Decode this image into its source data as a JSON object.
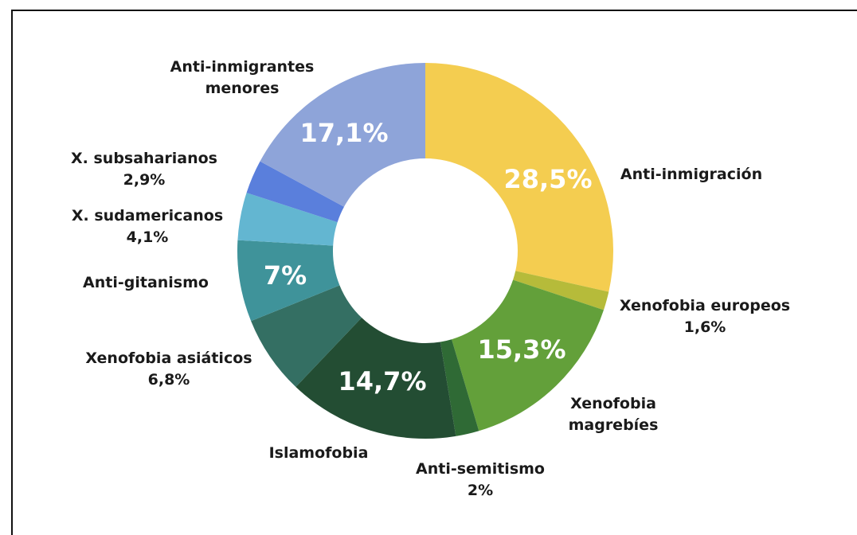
{
  "chart_data": {
    "type": "pie",
    "donut": true,
    "colors_note": "colors per slice",
    "slices": [
      {
        "name": "Anti-inmigración",
        "value": 28.5,
        "color": "#f4cd50",
        "ext_lines": [
          "Anti-inmigración"
        ],
        "inner_label": "28,5%"
      },
      {
        "name": "Xenofobia europeos",
        "value": 1.6,
        "color": "#b6bb3a",
        "ext_lines": [
          "Xenofobia europeos",
          "1,6%"
        ],
        "inner_label": ""
      },
      {
        "name": "Xenofobia magrebíes",
        "value": 15.3,
        "color": "#63a03a",
        "ext_lines": [
          "Xenofobia",
          "magrebíes"
        ],
        "inner_label": "15,3%"
      },
      {
        "name": "Anti-semitismo",
        "value": 2,
        "color": "#2f6a35",
        "ext_lines": [
          "Anti-semitismo",
          "2%"
        ],
        "inner_label": ""
      },
      {
        "name": "Islamofobia",
        "value": 14.7,
        "color": "#234d33",
        "ext_lines": [
          "Islamofobia"
        ],
        "inner_label": "14,7%"
      },
      {
        "name": "Xenofobia asiáticos",
        "value": 6.8,
        "color": "#346f63",
        "ext_lines": [
          "Xenofobia asiáticos",
          "6,8%"
        ],
        "inner_label": ""
      },
      {
        "name": "Anti-gitanismo",
        "value": 7,
        "color": "#3f939a",
        "ext_lines": [
          "Anti-gitanismo"
        ],
        "inner_label": "7%"
      },
      {
        "name": "X. sudamericanos",
        "value": 4.1,
        "color": "#63b6d1",
        "ext_lines": [
          "X. sudamericanos",
          "4,1%"
        ],
        "inner_label": ""
      },
      {
        "name": "X. subsaharianos",
        "value": 2.9,
        "color": "#5a7fdc",
        "ext_lines": [
          "X. subsaharianos",
          "2,9%"
        ],
        "inner_label": ""
      },
      {
        "name": "Anti-inmigrantes menores",
        "value": 17.1,
        "color": "#8ea4d9",
        "ext_lines": [
          "Anti-inmigrantes",
          "menores"
        ],
        "inner_label": "17,1%"
      }
    ]
  }
}
